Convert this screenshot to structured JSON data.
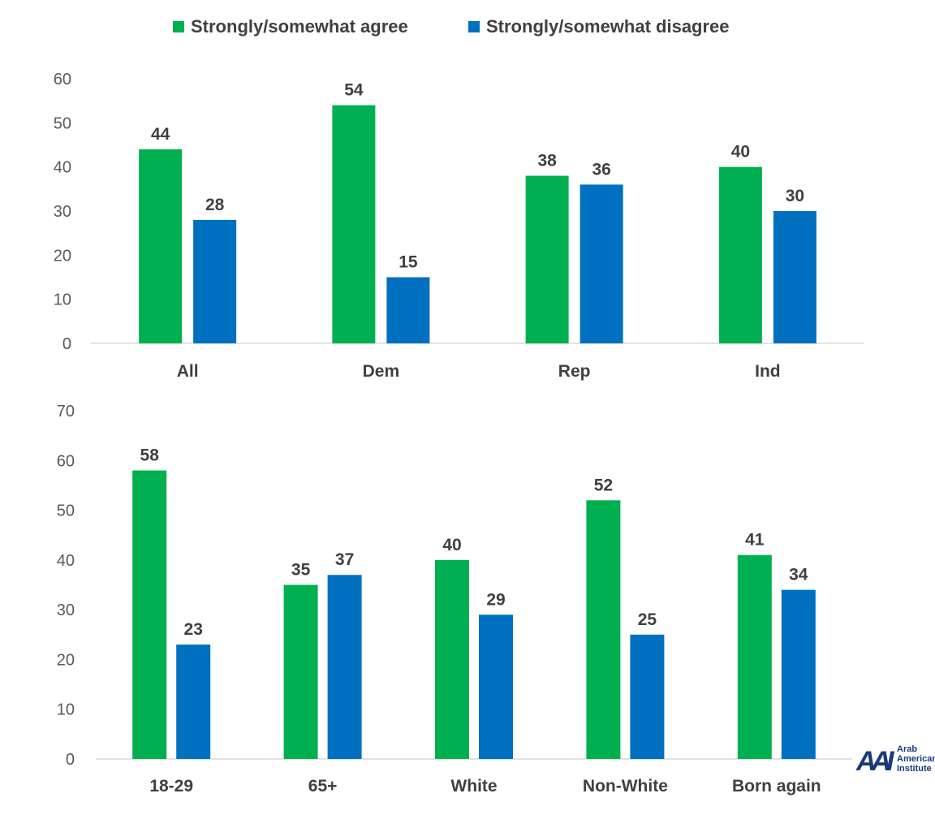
{
  "legend": [
    {
      "label": "Strongly/somewhat agree",
      "color": "#00B050"
    },
    {
      "label": "Strongly/somewhat disagree",
      "color": "#0070C0"
    }
  ],
  "chart_data": [
    {
      "type": "bar",
      "categories": [
        "All",
        "Dem",
        "Rep",
        "Ind"
      ],
      "series": [
        {
          "name": "Strongly/somewhat agree",
          "values": [
            44,
            54,
            38,
            40
          ],
          "color": "#00B050"
        },
        {
          "name": "Strongly/somewhat disagree",
          "values": [
            28,
            15,
            36,
            30
          ],
          "color": "#0070C0"
        }
      ],
      "ylim": [
        0,
        60
      ],
      "yticks": [
        0,
        10,
        20,
        30,
        40,
        50,
        60
      ],
      "grid": false,
      "legend": "top-center"
    },
    {
      "type": "bar",
      "categories": [
        "18-29",
        "65+",
        "White",
        "Non-White",
        "Born again"
      ],
      "series": [
        {
          "name": "Strongly/somewhat agree",
          "values": [
            58,
            35,
            40,
            52,
            41
          ],
          "color": "#00B050"
        },
        {
          "name": "Strongly/somewhat disagree",
          "values": [
            23,
            37,
            29,
            25,
            34
          ],
          "color": "#0070C0"
        }
      ],
      "ylim": [
        0,
        70
      ],
      "yticks": [
        0,
        10,
        20,
        30,
        40,
        50,
        60,
        70
      ],
      "grid": false
    }
  ],
  "logo": {
    "mark": "AAI",
    "lines": [
      "Arab",
      "American",
      "Institute"
    ]
  }
}
